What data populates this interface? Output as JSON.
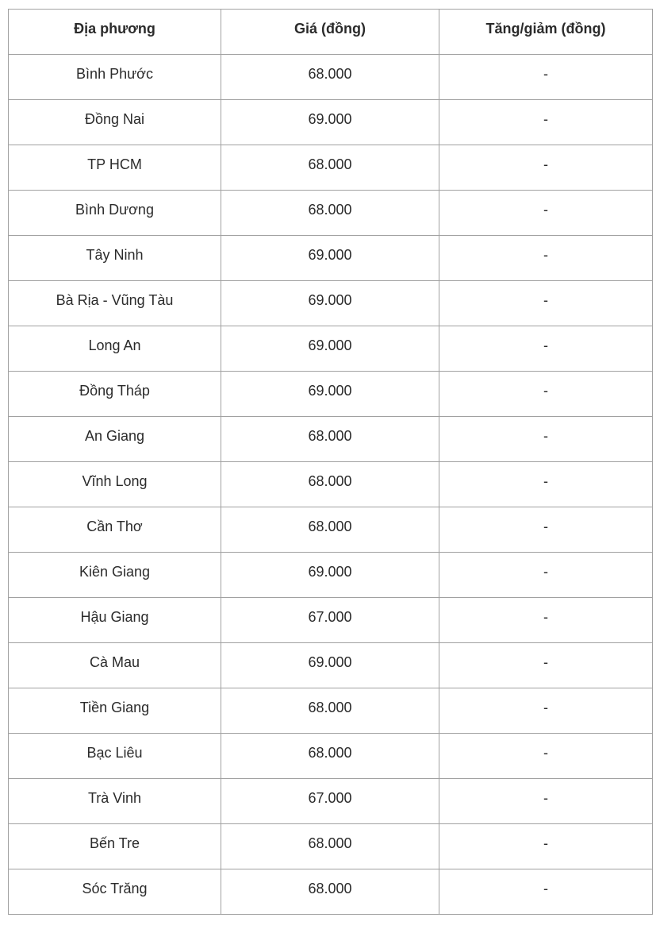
{
  "chart_data": {
    "type": "table",
    "columns": [
      "Địa phương",
      "Giá (đồng)",
      "Tăng/giảm (đồng)"
    ],
    "rows": [
      [
        "Bình Phước",
        "68.000",
        "-"
      ],
      [
        "Đồng Nai",
        "69.000",
        "-"
      ],
      [
        "TP HCM",
        "68.000",
        "-"
      ],
      [
        "Bình Dương",
        "68.000",
        "-"
      ],
      [
        "Tây Ninh",
        "69.000",
        "-"
      ],
      [
        "Bà Rịa - Vũng Tàu",
        "69.000",
        "-"
      ],
      [
        "Long An",
        "69.000",
        "-"
      ],
      [
        "Đồng Tháp",
        "69.000",
        "-"
      ],
      [
        "An Giang",
        "68.000",
        "-"
      ],
      [
        "Vĩnh Long",
        "68.000",
        "-"
      ],
      [
        "Cần Thơ",
        "68.000",
        "-"
      ],
      [
        "Kiên Giang",
        "69.000",
        "-"
      ],
      [
        "Hậu Giang",
        "67.000",
        "-"
      ],
      [
        "Cà Mau",
        "69.000",
        "-"
      ],
      [
        "Tiền Giang",
        "68.000",
        "-"
      ],
      [
        "Bạc Liêu",
        "68.000",
        "-"
      ],
      [
        "Trà Vinh",
        "67.000",
        "-"
      ],
      [
        "Bến Tre",
        "68.000",
        "-"
      ],
      [
        "Sóc Trăng",
        "68.000",
        "-"
      ]
    ]
  },
  "colors": {
    "border": "#a1a1a1",
    "text": "#2b2b2b",
    "background": "#ffffff"
  }
}
